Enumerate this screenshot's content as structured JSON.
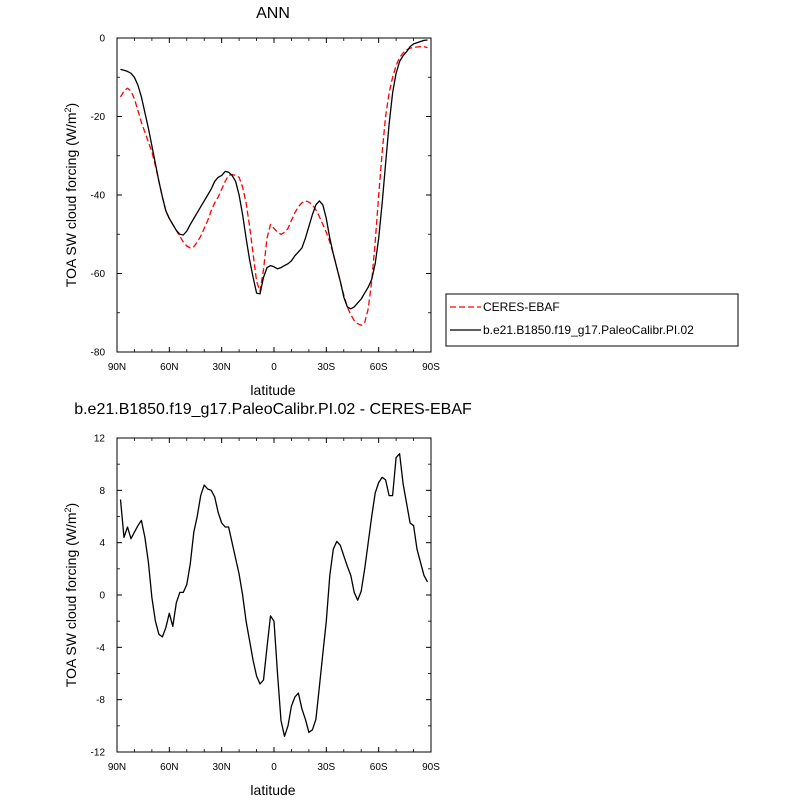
{
  "chart_data": [
    {
      "type": "line",
      "title": "ANN",
      "xlabel": "latitude",
      "ylabel": "TOA SW cloud forcing (W/m",
      "ylabel_sup": "2",
      "ylabel_end": ")",
      "xlim": [
        -90,
        90
      ],
      "ylim": [
        -80,
        0
      ],
      "x_ticks": [
        -90,
        -60,
        -30,
        0,
        30,
        60,
        90
      ],
      "x_tick_labels": [
        "90N",
        "60N",
        "30N",
        "0",
        "30S",
        "60S",
        "90S"
      ],
      "y_ticks": [
        -80,
        -60,
        -40,
        -20,
        0
      ],
      "y_tick_labels": [
        "-80",
        "-60",
        "-40",
        "-20",
        "0"
      ],
      "legend_position": "right",
      "series": [
        {
          "name": "CERES-EBAF",
          "color": "#ff0000",
          "dash": "dashed",
          "x": [
            -88,
            -86,
            -84,
            -82,
            -80,
            -78,
            -76,
            -74,
            -72,
            -70,
            -68,
            -66,
            -64,
            -62,
            -60,
            -58,
            -56,
            -54,
            -52,
            -50,
            -48,
            -46,
            -44,
            -42,
            -40,
            -38,
            -36,
            -34,
            -32,
            -30,
            -28,
            -26,
            -24,
            -22,
            -20,
            -18,
            -16,
            -14,
            -12,
            -10,
            -8,
            -6,
            -4,
            -2,
            0,
            2,
            4,
            6,
            8,
            10,
            12,
            14,
            16,
            18,
            20,
            22,
            24,
            26,
            28,
            30,
            32,
            34,
            36,
            38,
            40,
            42,
            44,
            46,
            48,
            50,
            52,
            54,
            56,
            58,
            60,
            62,
            64,
            66,
            68,
            70,
            72,
            74,
            76,
            78,
            80,
            82,
            84,
            86,
            88
          ],
          "values": [
            -15,
            -13.5,
            -12.8,
            -13.5,
            -15.5,
            -18.5,
            -21.5,
            -24,
            -26.5,
            -29,
            -32.5,
            -36.5,
            -40.5,
            -44,
            -46,
            -47.5,
            -49,
            -50.5,
            -52,
            -53,
            -53.5,
            -53.2,
            -52,
            -50.5,
            -48.5,
            -46.5,
            -44,
            -42,
            -40.5,
            -38.5,
            -36.5,
            -35,
            -34.8,
            -35,
            -35.5,
            -38,
            -42,
            -48,
            -55,
            -62,
            -64.5,
            -59,
            -51,
            -47.5,
            -48.5,
            -49.5,
            -50,
            -49.5,
            -48.5,
            -46.5,
            -44.5,
            -43,
            -42,
            -41.5,
            -41.8,
            -42.5,
            -43.8,
            -45.5,
            -47.5,
            -49.5,
            -52,
            -55,
            -58.5,
            -62,
            -65.5,
            -68.5,
            -70.5,
            -72,
            -72.8,
            -73.2,
            -72.5,
            -69,
            -62,
            -52,
            -40,
            -29,
            -20,
            -14,
            -10,
            -7,
            -5,
            -3.8,
            -3,
            -2.6,
            -2.4,
            -2.3,
            -2.2,
            -2.2,
            -2.5
          ]
        },
        {
          "name": "b.e21.B1850.f19_g17.PaleoCalibr.PI.02",
          "color": "#000000",
          "dash": "solid",
          "x": [
            -88,
            -86,
            -84,
            -82,
            -80,
            -78,
            -76,
            -74,
            -72,
            -70,
            -68,
            -66,
            -64,
            -62,
            -60,
            -58,
            -56,
            -54,
            -52,
            -50,
            -48,
            -46,
            -44,
            -42,
            -40,
            -38,
            -36,
            -34,
            -32,
            -30,
            -28,
            -26,
            -24,
            -22,
            -20,
            -18,
            -16,
            -14,
            -12,
            -10,
            -8,
            -6,
            -4,
            -2,
            0,
            2,
            4,
            6,
            8,
            10,
            12,
            14,
            16,
            18,
            20,
            22,
            24,
            26,
            28,
            30,
            32,
            34,
            36,
            38,
            40,
            42,
            44,
            46,
            48,
            50,
            52,
            54,
            56,
            58,
            60,
            62,
            64,
            66,
            68,
            70,
            72,
            74,
            76,
            78,
            80,
            82,
            84,
            86,
            88
          ],
          "values": [
            -8,
            -8.2,
            -8.5,
            -9,
            -10,
            -12,
            -15,
            -19,
            -23,
            -27.5,
            -32,
            -36.5,
            -40.5,
            -44,
            -46,
            -47.5,
            -49,
            -50,
            -50.2,
            -49.2,
            -47.5,
            -46,
            -44.5,
            -43,
            -41.5,
            -40,
            -38.5,
            -36.5,
            -35.5,
            -35,
            -34,
            -34.2,
            -35,
            -36.5,
            -40,
            -45,
            -51,
            -56.5,
            -61,
            -65,
            -65.2,
            -61,
            -58.5,
            -58,
            -58.3,
            -58.8,
            -58.5,
            -58,
            -57.5,
            -56.8,
            -55.5,
            -54.5,
            -53.5,
            -51,
            -48,
            -45,
            -42.5,
            -41.5,
            -42.5,
            -46,
            -51,
            -55,
            -58.5,
            -62,
            -66,
            -68.5,
            -69,
            -68.5,
            -67.5,
            -66.5,
            -65,
            -63.5,
            -61.5,
            -57.5,
            -51,
            -42,
            -32,
            -22,
            -14,
            -9,
            -6,
            -4.5,
            -3.5,
            -2.2,
            -1.5,
            -1.2,
            -0.9,
            -0.6,
            -0.5
          ]
        }
      ]
    },
    {
      "type": "line",
      "title": "b.e21.B1850.f19_g17.PaleoCalibr.PI.02 - CERES-EBAF",
      "xlabel": "latitude",
      "ylabel": "TOA SW cloud forcing (W/m",
      "ylabel_sup": "2",
      "ylabel_end": ")",
      "xlim": [
        -90,
        90
      ],
      "ylim": [
        -12,
        12
      ],
      "x_ticks": [
        -90,
        -60,
        -30,
        0,
        30,
        60,
        90
      ],
      "x_tick_labels": [
        "90N",
        "60N",
        "30N",
        "0",
        "30S",
        "60S",
        "90S"
      ],
      "y_ticks": [
        -12,
        -8,
        -4,
        0,
        4,
        8,
        12
      ],
      "y_tick_labels": [
        "-12",
        "-8",
        "-4",
        "0",
        "4",
        "8",
        "12"
      ],
      "series": [
        {
          "color": "#000000",
          "dash": "solid",
          "x": [
            -88,
            -86,
            -84,
            -82,
            -80,
            -78,
            -76,
            -74,
            -72,
            -70,
            -68,
            -66,
            -64,
            -62,
            -60,
            -58,
            -56,
            -54,
            -52,
            -50,
            -48,
            -46,
            -44,
            -42,
            -40,
            -38,
            -36,
            -34,
            -32,
            -30,
            -28,
            -26,
            -24,
            -22,
            -20,
            -18,
            -16,
            -14,
            -12,
            -10,
            -8,
            -6,
            -4,
            -2,
            0,
            2,
            4,
            6,
            8,
            10,
            12,
            14,
            16,
            18,
            20,
            22,
            24,
            26,
            28,
            30,
            32,
            34,
            36,
            38,
            40,
            42,
            44,
            46,
            48,
            50,
            52,
            54,
            56,
            58,
            60,
            62,
            64,
            66,
            68,
            70,
            72,
            74,
            76,
            78,
            80,
            82,
            84,
            86,
            88
          ],
          "values": [
            7.3,
            4.4,
            5.2,
            4.3,
            4.8,
            5.3,
            5.7,
            4.4,
            2.5,
            -0.2,
            -2.0,
            -3.0,
            -3.2,
            -2.5,
            -1.4,
            -2.4,
            -0.6,
            0.2,
            0.2,
            0.8,
            2.4,
            4.8,
            6.0,
            7.6,
            8.4,
            8.1,
            8.0,
            7.5,
            6.3,
            5.5,
            5.2,
            5.2,
            4.0,
            2.8,
            1.6,
            0.0,
            -2.0,
            -3.5,
            -5.0,
            -6.2,
            -6.8,
            -6.5,
            -4.0,
            -1.6,
            -2.0,
            -6.0,
            -9.6,
            -10.8,
            -10.0,
            -8.5,
            -7.8,
            -7.5,
            -8.7,
            -9.5,
            -10.5,
            -10.3,
            -9.5,
            -7.0,
            -4.5,
            -2.0,
            1.5,
            3.5,
            4.1,
            3.8,
            3.0,
            2.2,
            1.5,
            0.2,
            -0.4,
            0.3,
            2.0,
            4.0,
            6.0,
            7.8,
            8.6,
            9.0,
            8.8,
            7.6,
            7.6,
            10.5,
            10.8,
            8.5,
            7.0,
            5.5,
            5.3,
            3.5,
            2.5,
            1.5,
            1.0
          ]
        }
      ]
    }
  ]
}
